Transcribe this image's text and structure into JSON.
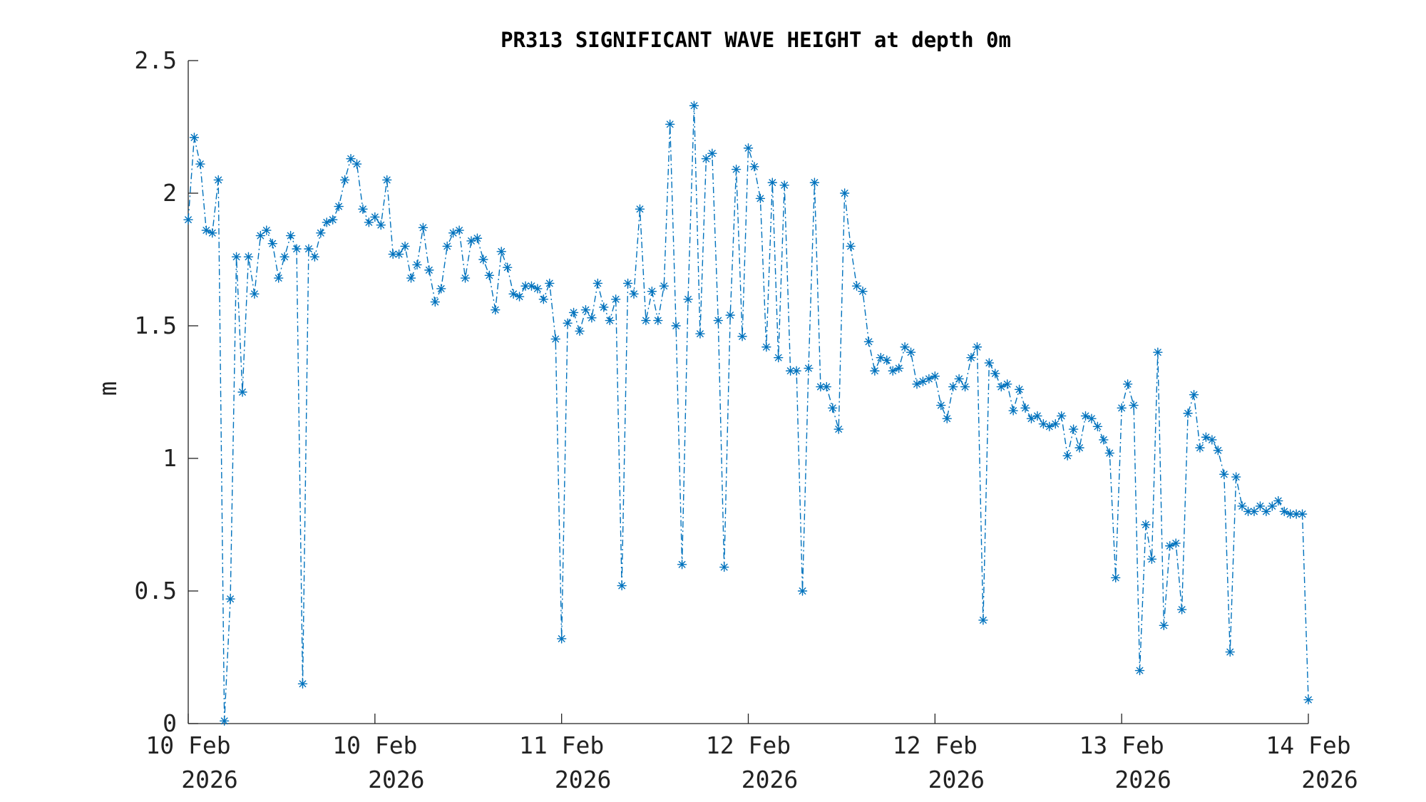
{
  "chart_data": {
    "type": "line",
    "title": "PR313 SIGNIFICANT WAVE HEIGHT at depth 0m",
    "xlabel": "",
    "ylabel": "m",
    "x_ticks": [
      {
        "line1": "10 Feb",
        "line2": "2026"
      },
      {
        "line1": "10 Feb",
        "line2": "2026"
      },
      {
        "line1": "11 Feb",
        "line2": "2026"
      },
      {
        "line1": "12 Feb",
        "line2": "2026"
      },
      {
        "line1": "12 Feb",
        "line2": "2026"
      },
      {
        "line1": "13 Feb",
        "line2": "2026"
      },
      {
        "line1": "14 Feb",
        "line2": "2026"
      }
    ],
    "y_ticks": [
      "0",
      "0.5",
      "1",
      "1.5",
      "2",
      "2.5"
    ],
    "ylim": [
      0,
      2.5
    ],
    "grid": false,
    "marker": "asterisk",
    "line_style": "dash-dot",
    "color": "#0072bd",
    "series": [
      {
        "values": [
          1.9,
          2.21,
          2.11,
          1.86,
          1.85,
          2.05,
          0.01,
          0.47,
          1.76,
          1.25,
          1.76,
          1.62,
          1.84,
          1.86,
          1.81,
          1.68,
          1.76,
          1.84,
          1.79,
          0.15,
          1.79,
          1.76,
          1.85,
          1.89,
          1.9,
          1.95,
          2.05,
          2.13,
          2.11,
          1.94,
          1.89,
          1.91,
          1.88,
          2.05,
          1.77,
          1.77,
          1.8,
          1.68,
          1.73,
          1.87,
          1.71,
          1.59,
          1.64,
          1.8,
          1.85,
          1.86,
          1.68,
          1.82,
          1.83,
          1.75,
          1.69,
          1.56,
          1.78,
          1.72,
          1.62,
          1.61,
          1.65,
          1.65,
          1.64,
          1.6,
          1.66,
          1.45,
          0.32,
          1.51,
          1.55,
          1.48,
          1.56,
          1.53,
          1.66,
          1.57,
          1.52,
          1.6,
          0.52,
          1.66,
          1.62,
          1.94,
          1.52,
          1.63,
          1.52,
          1.65,
          2.26,
          1.5,
          0.6,
          1.6,
          2.33,
          1.47,
          2.13,
          2.15,
          1.52,
          0.59,
          1.54,
          2.09,
          1.46,
          2.17,
          2.1,
          1.98,
          1.42,
          2.04,
          1.38,
          2.03,
          1.33,
          1.33,
          0.5,
          1.34,
          2.04,
          1.27,
          1.27,
          1.19,
          1.11,
          2.0,
          1.8,
          1.65,
          1.63,
          1.44,
          1.33,
          1.38,
          1.37,
          1.33,
          1.34,
          1.42,
          1.4,
          1.28,
          1.29,
          1.3,
          1.31,
          1.2,
          1.15,
          1.27,
          1.3,
          1.27,
          1.38,
          1.42,
          0.39,
          1.36,
          1.32,
          1.27,
          1.28,
          1.18,
          1.26,
          1.19,
          1.15,
          1.16,
          1.13,
          1.12,
          1.13,
          1.16,
          1.01,
          1.11,
          1.04,
          1.16,
          1.15,
          1.12,
          1.07,
          1.02,
          0.55,
          1.19,
          1.28,
          1.2,
          0.2,
          0.75,
          0.62,
          1.4,
          0.37,
          0.67,
          0.68,
          0.43,
          1.17,
          1.24,
          1.04,
          1.08,
          1.07,
          1.03,
          0.94,
          0.27,
          0.93,
          0.82,
          0.8,
          0.8,
          0.82,
          0.8,
          0.82,
          0.84,
          0.8,
          0.79,
          0.79,
          0.79,
          0.09
        ]
      }
    ]
  }
}
